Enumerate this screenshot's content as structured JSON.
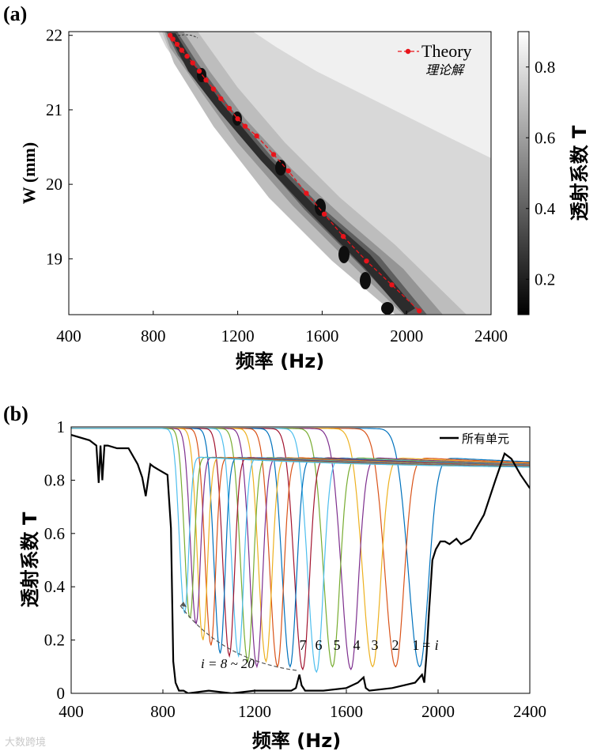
{
  "watermark": "大数跨境",
  "chart_data": [
    {
      "type": "heatmap",
      "panel_label": "(a)",
      "xlabel": "频率 (Hz)",
      "ylabel": "W (mm)",
      "xlim": [
        400,
        2400
      ],
      "ylim": [
        18.25,
        22.05
      ],
      "xticks": [
        400,
        800,
        1200,
        1600,
        2000,
        2400
      ],
      "yticks": [
        19,
        20,
        21,
        22
      ],
      "colorbar": {
        "label": "透射系数 T",
        "range": [
          0.1,
          0.9
        ],
        "ticks": [
          0.2,
          0.4,
          0.6,
          0.8
        ]
      },
      "legend": {
        "position": "top-right",
        "line1": "Theory",
        "line2": "理论解"
      },
      "theory_curve": {
        "name": "Theory",
        "color": "#e8141b",
        "w": [
          22.0,
          21.95,
          21.88,
          21.8,
          21.72,
          21.63,
          21.52,
          21.4,
          21.28,
          21.15,
          21.02,
          20.88,
          20.78,
          20.65,
          20.4,
          20.18,
          19.88,
          19.6,
          19.3,
          18.97,
          18.65,
          18.3
        ],
        "f": [
          880,
          893,
          913,
          935,
          960,
          987,
          1018,
          1050,
          1085,
          1120,
          1160,
          1200,
          1235,
          1290,
          1370,
          1440,
          1525,
          1610,
          1700,
          1810,
          1930,
          2060
        ]
      }
    },
    {
      "type": "line",
      "panel_label": "(b)",
      "xlabel": "频率 (Hz)",
      "ylabel": "透射系数 T",
      "xlim": [
        400,
        2400
      ],
      "ylim": [
        0,
        1
      ],
      "xticks": [
        400,
        800,
        1200,
        1600,
        2000,
        2400
      ],
      "yticks": [
        0,
        0.2,
        0.4,
        0.6,
        0.8,
        1
      ],
      "legend": {
        "position": "top-right",
        "entry": "所有单元"
      },
      "series_unit_cells": {
        "count": 20,
        "dip_frequency": [
          1920,
          1815,
          1715,
          1620,
          1540,
          1470,
          1410,
          1355,
          1300,
          1250,
          1210,
          1170,
          1130,
          1090,
          1050,
          1010,
          975,
          945,
          918,
          895
        ],
        "dip_min_T": [
          0.1,
          0.1,
          0.1,
          0.09,
          0.1,
          0.08,
          0.09,
          0.1,
          0.1,
          0.12,
          0.1,
          0.12,
          0.14,
          0.14,
          0.15,
          0.18,
          0.2,
          0.26,
          0.28,
          0.3
        ],
        "colors": [
          "#0072bd",
          "#d95319",
          "#edb120",
          "#7e2f8e",
          "#77ac30",
          "#4dbeee",
          "#a2142f",
          "#0072bd",
          "#d95319",
          "#edb120",
          "#7e2f8e",
          "#77ac30",
          "#4dbeee",
          "#a2142f",
          "#0072bd",
          "#d95319",
          "#edb120",
          "#7e2f8e",
          "#77ac30",
          "#4dbeee"
        ]
      },
      "series_all_cells": {
        "name": "所有单元",
        "color": "#000000",
        "x": [
          400,
          480,
          510,
          520,
          528,
          536,
          545,
          560,
          600,
          650,
          690,
          710,
          725,
          735,
          745,
          760,
          780,
          800,
          820,
          835,
          845,
          855,
          870,
          890,
          910,
          1000,
          1100,
          1200,
          1300,
          1360,
          1380,
          1395,
          1405,
          1420,
          1500,
          1600,
          1650,
          1675,
          1685,
          1700,
          1800,
          1900,
          1930,
          1940,
          1950,
          1960,
          1975,
          1990,
          2010,
          2030,
          2050,
          2080,
          2100,
          2140,
          2200,
          2250,
          2290,
          2320,
          2360,
          2400
        ],
        "y": [
          0.97,
          0.95,
          0.93,
          0.79,
          0.93,
          0.8,
          0.93,
          0.93,
          0.92,
          0.92,
          0.86,
          0.81,
          0.74,
          0.8,
          0.86,
          0.85,
          0.84,
          0.83,
          0.82,
          0.62,
          0.12,
          0.04,
          0.01,
          0.01,
          0.0,
          0.01,
          0.0,
          0.01,
          0.01,
          0.01,
          0.02,
          0.07,
          0.03,
          0.01,
          0.01,
          0.02,
          0.04,
          0.06,
          0.02,
          0.01,
          0.02,
          0.04,
          0.07,
          0.04,
          0.15,
          0.3,
          0.5,
          0.54,
          0.57,
          0.57,
          0.56,
          0.58,
          0.56,
          0.58,
          0.67,
          0.8,
          0.9,
          0.88,
          0.82,
          0.77
        ]
      },
      "annotations": {
        "unit_labels": [
          "7",
          "6",
          "5",
          "4",
          "3",
          "2",
          "1"
        ],
        "equals_i": "= i",
        "range_label": "i = 8 ~ 20"
      }
    }
  ]
}
